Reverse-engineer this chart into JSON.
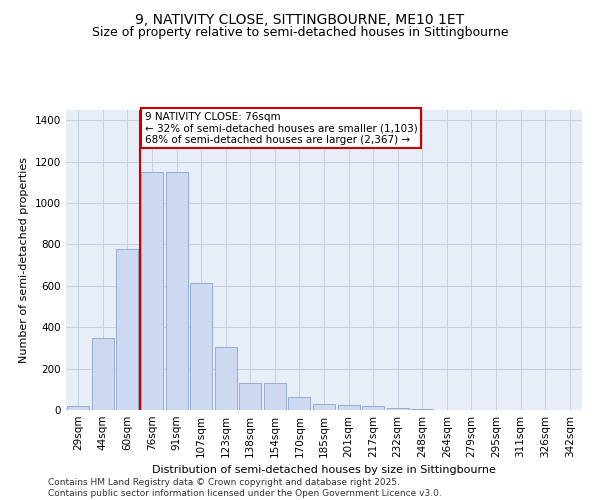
{
  "title": "9, NATIVITY CLOSE, SITTINGBOURNE, ME10 1ET",
  "subtitle": "Size of property relative to semi-detached houses in Sittingbourne",
  "xlabel": "Distribution of semi-detached houses by size in Sittingbourne",
  "ylabel": "Number of semi-detached properties",
  "categories": [
    "29sqm",
    "44sqm",
    "60sqm",
    "76sqm",
    "91sqm",
    "107sqm",
    "123sqm",
    "138sqm",
    "154sqm",
    "170sqm",
    "185sqm",
    "201sqm",
    "217sqm",
    "232sqm",
    "248sqm",
    "264sqm",
    "279sqm",
    "295sqm",
    "311sqm",
    "326sqm",
    "342sqm"
  ],
  "values": [
    20,
    350,
    780,
    1150,
    1150,
    615,
    305,
    130,
    130,
    65,
    30,
    25,
    20,
    8,
    3,
    2,
    1,
    1,
    0,
    0,
    0
  ],
  "bar_color": "#ccd9f0",
  "bar_edge_color": "#89a4cc",
  "highlight_bar_index": 3,
  "highlight_line_color": "#cc0000",
  "annotation_text": "9 NATIVITY CLOSE: 76sqm\n← 32% of semi-detached houses are smaller (1,103)\n68% of semi-detached houses are larger (2,367) →",
  "annotation_box_color": "#cc0000",
  "ylim": [
    0,
    1450
  ],
  "yticks": [
    0,
    200,
    400,
    600,
    800,
    1000,
    1200,
    1400
  ],
  "footer_text": "Contains HM Land Registry data © Crown copyright and database right 2025.\nContains public sector information licensed under the Open Government Licence v3.0.",
  "bg_color": "#e8eef8",
  "grid_color": "#c5cfe0",
  "title_fontsize": 10,
  "subtitle_fontsize": 9,
  "axis_label_fontsize": 8,
  "tick_fontsize": 7.5,
  "footer_fontsize": 6.5,
  "annotation_fontsize": 7.5
}
